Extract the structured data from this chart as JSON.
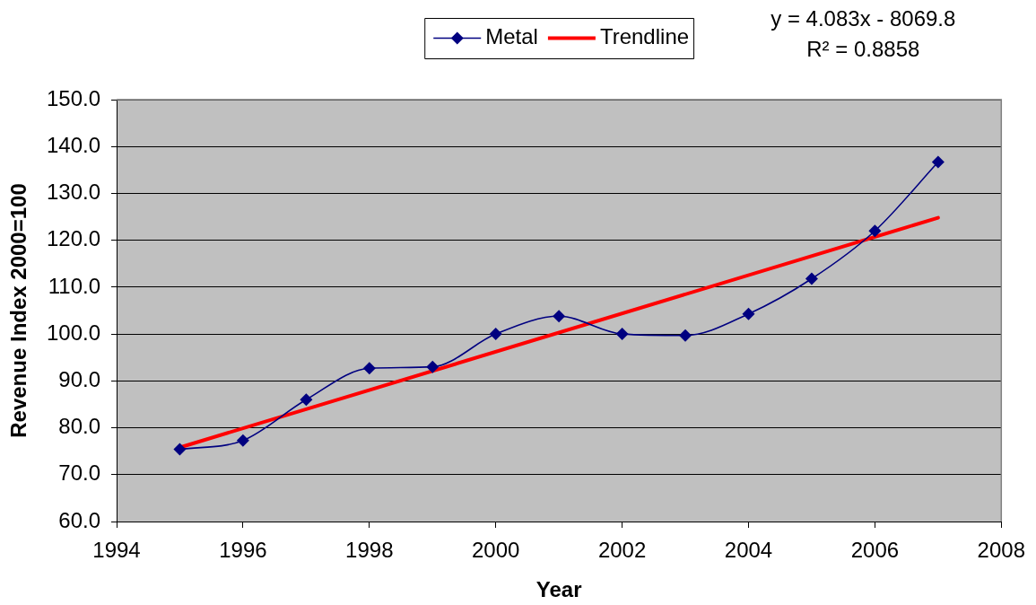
{
  "chart_data": {
    "type": "line",
    "xlabel": "Year",
    "ylabel": "Revenue Index 2000=100",
    "x": [
      1995,
      1996,
      1997,
      1998,
      1999,
      2000,
      2001,
      2002,
      2003,
      2004,
      2005,
      2006,
      2007
    ],
    "series": [
      {
        "name": "Metal",
        "color": "#000080",
        "marker": "diamond",
        "values": [
          75.4,
          77.3,
          86.0,
          92.7,
          93.0,
          100.0,
          103.8,
          100.0,
          99.7,
          104.3,
          111.8,
          122.0,
          136.7
        ]
      },
      {
        "name": "Trendline",
        "color": "#ff0000",
        "marker": "none",
        "x": [
          1995,
          2007
        ],
        "values": [
          75.8,
          124.8
        ]
      }
    ],
    "xlim": [
      1994,
      2008
    ],
    "xticks": [
      1994,
      1996,
      1998,
      2000,
      2002,
      2004,
      2006,
      2008
    ],
    "ylim": [
      60,
      150
    ],
    "yticks": [
      {
        "value": 60,
        "label": "60.0"
      },
      {
        "value": 70,
        "label": "70.0"
      },
      {
        "value": 80,
        "label": "80.0"
      },
      {
        "value": 90,
        "label": "90.0"
      },
      {
        "value": 100,
        "label": "100.0"
      },
      {
        "value": 110,
        "label": "110.0"
      },
      {
        "value": 120,
        "label": "120.0"
      },
      {
        "value": 130,
        "label": "130.0"
      },
      {
        "value": 140,
        "label": "140.0"
      },
      {
        "value": 150,
        "label": "150.0"
      }
    ],
    "grid": "y",
    "legend": "top",
    "annotations": [
      "y = 4.083x - 8069.8",
      "R² = 0.8858"
    ]
  }
}
